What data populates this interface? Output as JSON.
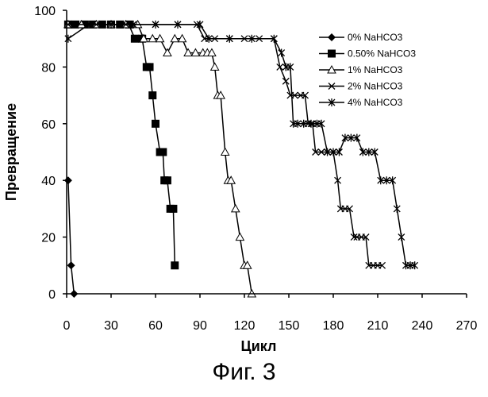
{
  "caption": "Фиг. 3",
  "chart_data": {
    "type": "line",
    "title": "",
    "xlabel": "Цикл",
    "ylabel": "Превращение",
    "xlim": [
      0,
      270
    ],
    "ylim": [
      0,
      100
    ],
    "xticks": [
      0,
      30,
      60,
      90,
      120,
      150,
      180,
      210,
      240,
      270
    ],
    "yticks": [
      0,
      20,
      40,
      60,
      80,
      100
    ],
    "grid": false,
    "legend_position": "top-right",
    "series": [
      {
        "name": "0% NaHCO3",
        "marker": "diamond",
        "color": "#000000",
        "points": [
          [
            1,
            40
          ],
          [
            3,
            10
          ],
          [
            5,
            0
          ]
        ]
      },
      {
        "name": "0.50% NaHCO3",
        "marker": "square",
        "color": "#000000",
        "points": [
          [
            1,
            95
          ],
          [
            6,
            95
          ],
          [
            12,
            95
          ],
          [
            18,
            95
          ],
          [
            24,
            95
          ],
          [
            30,
            95
          ],
          [
            36,
            95
          ],
          [
            42,
            95
          ],
          [
            46,
            90
          ],
          [
            51,
            90
          ],
          [
            54,
            80
          ],
          [
            56,
            80
          ],
          [
            58,
            70
          ],
          [
            60,
            60
          ],
          [
            63,
            50
          ],
          [
            65,
            50
          ],
          [
            66,
            40
          ],
          [
            68,
            40
          ],
          [
            70,
            30
          ],
          [
            72,
            30
          ],
          [
            73,
            10
          ]
        ]
      },
      {
        "name": "1% NaHCO3",
        "marker": "triangle",
        "color": "#000000",
        "points": [
          [
            1,
            95
          ],
          [
            10,
            95
          ],
          [
            20,
            95
          ],
          [
            30,
            95
          ],
          [
            40,
            95
          ],
          [
            48,
            95
          ],
          [
            52,
            90
          ],
          [
            58,
            90
          ],
          [
            63,
            90
          ],
          [
            68,
            85
          ],
          [
            73,
            90
          ],
          [
            78,
            90
          ],
          [
            82,
            85
          ],
          [
            87,
            85
          ],
          [
            92,
            85
          ],
          [
            95,
            85
          ],
          [
            98,
            85
          ],
          [
            100,
            80
          ],
          [
            102,
            70
          ],
          [
            104,
            70
          ],
          [
            107,
            50
          ],
          [
            109,
            40
          ],
          [
            111,
            40
          ],
          [
            114,
            30
          ],
          [
            117,
            20
          ],
          [
            120,
            10
          ],
          [
            122,
            10
          ],
          [
            125,
            0
          ]
        ]
      },
      {
        "name": "2% NaHCO3",
        "marker": "x",
        "color": "#000000",
        "points": [
          [
            1,
            95
          ],
          [
            20,
            95
          ],
          [
            40,
            95
          ],
          [
            60,
            95
          ],
          [
            75,
            95
          ],
          [
            88,
            95
          ],
          [
            93,
            90
          ],
          [
            100,
            90
          ],
          [
            110,
            90
          ],
          [
            120,
            90
          ],
          [
            130,
            90
          ],
          [
            140,
            90
          ],
          [
            144,
            80
          ],
          [
            148,
            75
          ],
          [
            151,
            70
          ],
          [
            154,
            70
          ],
          [
            158,
            70
          ],
          [
            161,
            70
          ],
          [
            163,
            60
          ],
          [
            166,
            60
          ],
          [
            168,
            50
          ],
          [
            172,
            50
          ],
          [
            176,
            50
          ],
          [
            180,
            50
          ],
          [
            183,
            40
          ],
          [
            185,
            30
          ],
          [
            188,
            30
          ],
          [
            191,
            30
          ],
          [
            194,
            20
          ],
          [
            196,
            20
          ],
          [
            199,
            20
          ],
          [
            202,
            20
          ],
          [
            204,
            10
          ],
          [
            207,
            10
          ],
          [
            210,
            10
          ],
          [
            213,
            10
          ]
        ]
      },
      {
        "name": "4% NaHCO3",
        "marker": "star",
        "color": "#000000",
        "points": [
          [
            1,
            90
          ],
          [
            15,
            95
          ],
          [
            30,
            95
          ],
          [
            45,
            95
          ],
          [
            60,
            95
          ],
          [
            75,
            95
          ],
          [
            90,
            95
          ],
          [
            96,
            90
          ],
          [
            110,
            90
          ],
          [
            125,
            90
          ],
          [
            140,
            90
          ],
          [
            145,
            85
          ],
          [
            148,
            80
          ],
          [
            151,
            80
          ],
          [
            153,
            60
          ],
          [
            156,
            60
          ],
          [
            160,
            60
          ],
          [
            165,
            60
          ],
          [
            169,
            60
          ],
          [
            172,
            60
          ],
          [
            176,
            50
          ],
          [
            180,
            50
          ],
          [
            184,
            50
          ],
          [
            188,
            55
          ],
          [
            192,
            55
          ],
          [
            196,
            55
          ],
          [
            200,
            50
          ],
          [
            204,
            50
          ],
          [
            208,
            50
          ],
          [
            212,
            40
          ],
          [
            216,
            40
          ],
          [
            220,
            40
          ],
          [
            223,
            30
          ],
          [
            226,
            20
          ],
          [
            229,
            10
          ],
          [
            232,
            10
          ],
          [
            235,
            10
          ]
        ]
      }
    ]
  }
}
